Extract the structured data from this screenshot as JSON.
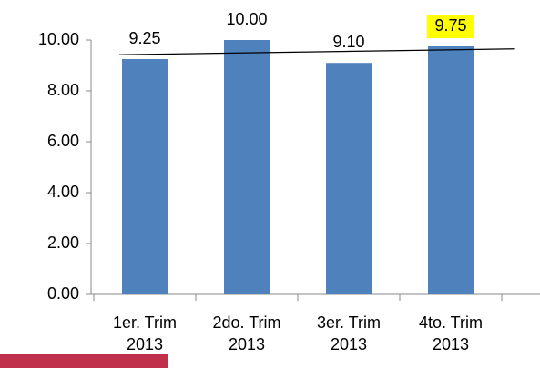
{
  "chart_data": {
    "type": "bar",
    "categories": [
      "1er. Trim 2013",
      "2do. Trim 2013",
      "3er. Trim 2013",
      "4to. Trim 2013"
    ],
    "values": [
      9.25,
      10,
      9.1,
      9.75
    ],
    "value_labels": [
      "9.25",
      "10.00",
      "9.10",
      "9.75"
    ],
    "color": "#4f81bd",
    "ylim": [
      0,
      10
    ],
    "yticks": [
      {
        "value": 0,
        "label": "0.00"
      },
      {
        "value": 2,
        "label": "2.00"
      },
      {
        "value": 4,
        "label": "4.00"
      },
      {
        "value": 6,
        "label": "6.00"
      },
      {
        "value": 8,
        "label": "8.00"
      },
      {
        "value": 10,
        "label": "10.00"
      }
    ],
    "trendline": "linear",
    "highlighted_label": 3,
    "highlight_color": "#ffff00"
  }
}
